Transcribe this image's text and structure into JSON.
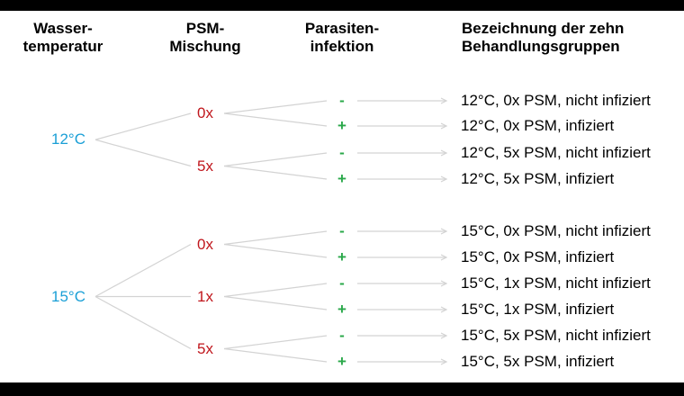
{
  "colors": {
    "temperature": "#1a9fd6",
    "psm": "#c0171d",
    "infection": "#2aa84a",
    "text": "#000000",
    "lines": "#d3d3d3",
    "frame": "#000000"
  },
  "headers": {
    "temperature": [
      "Wasser-",
      "temperatur"
    ],
    "psm": [
      "PSM-",
      "Mischung"
    ],
    "infection": [
      "Parasiten-",
      "infektion"
    ],
    "groups": [
      "Bezeichnung der zehn",
      "Behandlungsgruppen"
    ]
  },
  "tree": {
    "temperatures": [
      {
        "label": "12°C",
        "psm": [
          {
            "label": "0x",
            "infection": [
              "-",
              "+"
            ]
          },
          {
            "label": "5x",
            "infection": [
              "-",
              "+"
            ]
          }
        ]
      },
      {
        "label": "15°C",
        "psm": [
          {
            "label": "0x",
            "infection": [
              "-",
              "+"
            ]
          },
          {
            "label": "1x",
            "infection": [
              "-",
              "+"
            ]
          },
          {
            "label": "5x",
            "infection": [
              "-",
              "+"
            ]
          }
        ]
      }
    ]
  },
  "groups": [
    "12°C, 0x PSM, nicht infiziert",
    "12°C, 0x PSM, infiziert",
    "12°C, 5x PSM, nicht infiziert",
    "12°C, 5x PSM, infiziert",
    "15°C, 0x PSM, nicht infiziert",
    "15°C, 0x PSM, infiziert",
    "15°C, 1x PSM, nicht infiziert",
    "15°C, 1x PSM, infiziert",
    "15°C, 5x PSM, nicht infiziert",
    "15°C, 5x PSM, infiziert"
  ]
}
